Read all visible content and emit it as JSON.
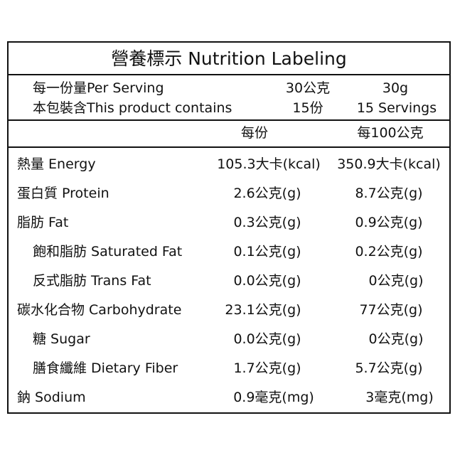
{
  "title": "營養標示 Nutrition Labeling",
  "serving": [
    [
      "每一份量Per Serving",
      "30公克",
      "30g"
    ],
    [
      "本包裝含This product contains",
      "15份",
      "15 Servings"
    ]
  ],
  "columns": [
    "每份",
    "每100公克"
  ],
  "rows": [
    [
      "熱量 Energy",
      "105.3大卡(kcal)",
      "350.9大卡(kcal)"
    ],
    [
      "蛋白質 Protein",
      "2.6公克(g)",
      "8.7公克(g)"
    ],
    [
      "脂肪 Fat",
      "0.3公克(g)",
      "0.9公克(g)"
    ],
    [
      "飽和脂肪 Saturated Fat",
      "0.1公克(g)",
      "0.2公克(g)"
    ],
    [
      "反式脂肪 Trans Fat",
      "0.0公克(g)",
      "0公克(g)"
    ],
    [
      "碳水化合物 Carbohydrate",
      "23.1公克(g)",
      "77公克(g)"
    ],
    [
      "糖 Sugar",
      "0.0公克(g)",
      "0公克(g)"
    ],
    [
      "膳食纖維 Dietary Fiber",
      "1.7公克(g)",
      "5.7公克(g)"
    ],
    [
      "鈉 Sodium",
      "0.9毫克(mg)",
      "3毫克(mg)"
    ]
  ]
}
